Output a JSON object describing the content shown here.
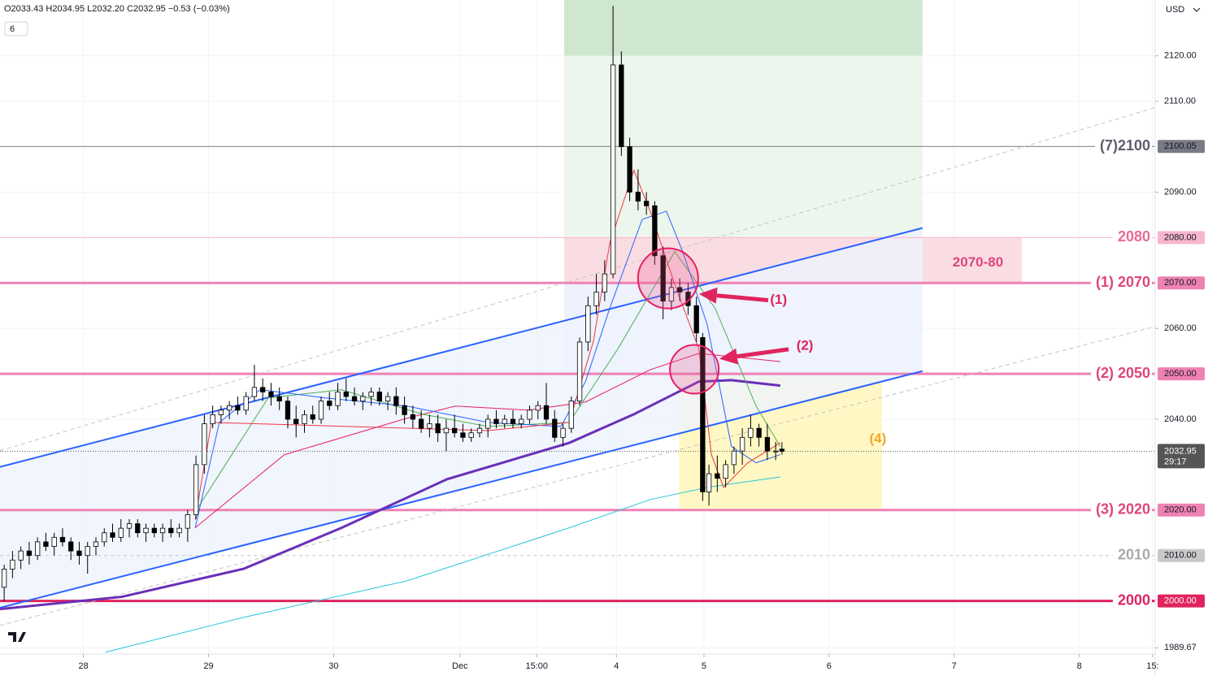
{
  "chart_data": {
    "type": "candlestick",
    "header": "O2033.43 H2034.95 L2032.20 C2032.95 −0.53 (−0.03%)",
    "interval_badge": "6",
    "currency": "USD",
    "xlim": [
      0,
      277
    ],
    "ylim": [
      1988.3,
      2132.3
    ],
    "grid": true,
    "xticks": [
      {
        "value": 20,
        "label": "28"
      },
      {
        "value": 50,
        "label": "29"
      },
      {
        "value": 80,
        "label": "30"
      },
      {
        "value": 110.3,
        "label": "Dec"
      },
      {
        "value": 128.7,
        "label": "15:00"
      },
      {
        "value": 147.8,
        "label": "4"
      },
      {
        "value": 168.8,
        "label": "5"
      },
      {
        "value": 198.8,
        "label": "6"
      },
      {
        "value": 228.8,
        "label": "7"
      },
      {
        "value": 258.8,
        "label": "8"
      },
      {
        "value": 276.4,
        "label": "15:"
      }
    ],
    "yticks": [
      {
        "value": 2120,
        "label": "2120.00"
      },
      {
        "value": 2110,
        "label": "2110.00"
      },
      {
        "value": 2090,
        "label": "2090.00"
      },
      {
        "value": 2060,
        "label": "2060.00"
      },
      {
        "value": 2040,
        "label": "2040.00"
      },
      {
        "value": 1989.67,
        "label": "1989.67"
      }
    ],
    "up_color": "#ffffff",
    "down_color": "#000000",
    "wick_color": "#000000",
    "x": [
      1,
      3,
      5,
      7,
      9,
      11,
      13,
      15,
      17,
      19,
      21,
      23,
      25,
      27,
      29,
      31,
      33,
      35,
      37,
      39,
      41,
      43,
      45,
      47,
      49,
      51,
      53,
      55,
      57,
      59,
      61,
      63,
      65,
      67,
      69,
      71,
      73,
      75,
      77,
      79,
      81,
      83,
      85,
      87,
      89,
      91,
      93,
      95,
      97,
      99,
      101,
      103,
      105,
      107,
      109,
      111,
      113,
      115,
      117,
      119,
      121,
      123,
      125,
      127,
      129,
      131,
      133,
      135,
      137,
      139,
      141,
      143,
      145,
      147,
      149,
      151,
      153,
      155,
      157,
      159,
      161,
      163,
      165,
      167,
      168.5,
      170,
      172,
      174,
      176,
      178,
      180,
      182,
      184,
      186,
      187.5
    ],
    "open": [
      2003,
      2007,
      2009,
      2011,
      2010,
      2013,
      2012,
      2014,
      2013,
      2011,
      2010,
      2012,
      2013,
      2015,
      2014,
      2016,
      2017,
      2015,
      2016,
      2015,
      2016,
      2015,
      2016,
      2019,
      2030,
      2039,
      2041,
      2042,
      2043,
      2042,
      2045,
      2047,
      2046,
      2045,
      2044,
      2040,
      2039,
      2041,
      2040,
      2044,
      2043,
      2046,
      2045,
      2044,
      2045,
      2046,
      2044,
      2045,
      2043,
      2041,
      2040,
      2038,
      2039,
      2037,
      2038,
      2037,
      2036,
      2037,
      2038,
      2040,
      2039,
      2040,
      2039,
      2040,
      2042,
      2043,
      2040,
      2036,
      2038,
      2044,
      2057,
      2065,
      2068,
      2072,
      2118,
      2100,
      2090,
      2088,
      2087,
      2076,
      2066,
      2069,
      2068,
      2065,
      2058,
      2024,
      2028,
      2027,
      2030,
      2033,
      2036,
      2038,
      2036,
      2033,
      2033.43
    ],
    "high": [
      2008,
      2011,
      2012,
      2013,
      2014,
      2015,
      2015,
      2016,
      2014,
      2013,
      2013,
      2014,
      2016,
      2017,
      2018,
      2018,
      2018,
      2017,
      2017,
      2017,
      2018,
      2017,
      2020,
      2032,
      2041,
      2043,
      2043,
      2044,
      2045,
      2046,
      2052,
      2049,
      2048,
      2047,
      2045,
      2043,
      2042,
      2043,
      2045,
      2046,
      2048,
      2049,
      2047,
      2046,
      2047,
      2047,
      2046,
      2047,
      2045,
      2043,
      2042,
      2041,
      2041,
      2040,
      2041,
      2039,
      2038,
      2039,
      2041,
      2042,
      2041,
      2042,
      2041,
      2043,
      2044,
      2048,
      2042,
      2039,
      2045,
      2058,
      2067,
      2072,
      2075,
      2131,
      2121,
      2102,
      2095,
      2090,
      2088,
      2078,
      2071,
      2071,
      2070,
      2067,
      2059,
      2030,
      2032,
      2031,
      2034,
      2038,
      2041,
      2039,
      2039,
      2035,
      2034.95
    ],
    "low": [
      2000,
      2005,
      2007,
      2008,
      2009,
      2011,
      2010,
      2012,
      2009,
      2008,
      2006,
      2010,
      2012,
      2013,
      2013,
      2014,
      2014,
      2013,
      2014,
      2013,
      2014,
      2014,
      2013,
      2018,
      2028,
      2038,
      2039,
      2040,
      2041,
      2041,
      2044,
      2044,
      2043,
      2042,
      2038,
      2036,
      2037,
      2039,
      2039,
      2042,
      2042,
      2044,
      2043,
      2042,
      2043,
      2043,
      2042,
      2041,
      2039,
      2038,
      2037,
      2036,
      2035,
      2033,
      2036,
      2035,
      2035,
      2036,
      2036,
      2038,
      2038,
      2038,
      2038,
      2039,
      2040,
      2039,
      2035,
      2034,
      2037,
      2043,
      2055,
      2063,
      2066,
      2071,
      2098,
      2088,
      2086,
      2085,
      2074,
      2062,
      2064,
      2066,
      2063,
      2057,
      2022,
      2021,
      2024,
      2025,
      2028,
      2030,
      2034,
      2034,
      2031,
      2031,
      2032.2
    ],
    "close": [
      2007,
      2009,
      2011,
      2010,
      2013,
      2012,
      2014,
      2013,
      2011,
      2010,
      2012,
      2013,
      2015,
      2014,
      2016,
      2017,
      2015,
      2016,
      2015,
      2016,
      2015,
      2016,
      2019,
      2030,
      2039,
      2041,
      2042,
      2043,
      2042,
      2045,
      2047,
      2046,
      2045,
      2044,
      2040,
      2039,
      2041,
      2040,
      2044,
      2043,
      2046,
      2045,
      2044,
      2045,
      2046,
      2044,
      2045,
      2043,
      2041,
      2040,
      2038,
      2039,
      2037,
      2038,
      2037,
      2036,
      2037,
      2038,
      2040,
      2039,
      2040,
      2039,
      2040,
      2042,
      2043,
      2040,
      2036,
      2038,
      2044,
      2057,
      2065,
      2068,
      2072,
      2118,
      2100,
      2090,
      2088,
      2087,
      2076,
      2066,
      2069,
      2068,
      2065,
      2059,
      2024,
      2028,
      2027,
      2030,
      2033,
      2036,
      2038,
      2036,
      2033,
      2033,
      2032.95
    ],
    "zones": [
      {
        "x": [
          135.3,
          221.2
        ],
        "y": [
          2120,
          2132.3
        ],
        "color": "#cfe6cf"
      },
      {
        "x": [
          135.3,
          221.2
        ],
        "y": [
          2080.1,
          2120
        ],
        "color": "#edf6ec"
      },
      {
        "x": [
          135.3,
          245
        ],
        "y": [
          2070.1,
          2080.1
        ],
        "color": "#f9dde3"
      },
      {
        "x": [
          135.3,
          221.2
        ],
        "y": [
          2050,
          2070.1
        ],
        "color": "#eef2fc"
      },
      {
        "x": [
          162.8,
          211.5
        ],
        "y": [
          2020,
          2050
        ],
        "color": "#fff8c4"
      }
    ],
    "channel_fill": "#eef2fc",
    "trendlines": [
      {
        "x": [
          0,
          221.2
        ],
        "y": [
          2029.5,
          2082.1
        ],
        "color": "#2962ff",
        "dashed": false
      },
      {
        "x": [
          0,
          221.2
        ],
        "y": [
          1998.5,
          2050.6
        ],
        "color": "#2962ff",
        "dashed": false
      },
      {
        "x": [
          0,
          277
        ],
        "y": [
          2033.1,
          2108.6
        ],
        "color": "#c4c4c4",
        "dashed": true
      },
      {
        "x": [
          0,
          277
        ],
        "y": [
          1994.6,
          2060.4
        ],
        "color": "#c4c4c4",
        "dashed": true
      }
    ],
    "lines": [
      {
        "color": "#26c6da",
        "width": 1,
        "x": [
          25.3,
          58.5,
          97.5,
          136.5,
          155.9,
          169.6,
          187.1
        ],
        "y": [
          1988.7,
          1996.4,
          2004.4,
          2016.1,
          2022.3,
          2025,
          2027.3
        ]
      },
      {
        "color": "#6a2fb8",
        "width": 3,
        "x": [
          0,
          29.2,
          58.5,
          81.9,
          107.2,
          136.5,
          152,
          167.6,
          175.4,
          187.1
        ],
        "y": [
          1998.2,
          2000.9,
          2007.1,
          2016.1,
          2026.8,
          2034.8,
          2041.1,
          2048.3,
          2048.6,
          2047.4
        ]
      },
      {
        "color": "#e91e63",
        "width": 1,
        "x": [
          46.8,
          68.2,
          97.5,
          109.2,
          126.7,
          140.4,
          155.9,
          167.6,
          187.1
        ],
        "y": [
          2016.1,
          2032.2,
          2040.2,
          2042.9,
          2042,
          2043.8,
          2050.9,
          2054.5,
          2052.7
        ]
      },
      {
        "color": "#4caf50",
        "width": 1,
        "x": [
          46.8,
          64.3,
          81.9,
          101.4,
          117,
          136.5,
          148.1,
          161.8,
          171.5,
          181.3,
          187.1
        ],
        "y": [
          2019.6,
          2044.7,
          2046.5,
          2041.1,
          2038.4,
          2039.3,
          2055.4,
          2076.9,
          2064.4,
          2042.9,
          2034
        ]
      },
      {
        "color": "#2962ff",
        "width": 1,
        "x": [
          46.8,
          52.6,
          62.4,
          78,
          97.5,
          117,
          134.5,
          140.4,
          146.2,
          154,
          159.8,
          163.7,
          169.6,
          175.4,
          181.3,
          187.1
        ],
        "y": [
          2016.1,
          2039.3,
          2046.5,
          2044.7,
          2042.9,
          2039.3,
          2038.4,
          2048.3,
          2064.4,
          2084,
          2085.8,
          2076.9,
          2060.8,
          2034,
          2030.4,
          2032.2
        ]
      },
      {
        "color": "#f23645",
        "width": 1,
        "x": [
          46.8,
          50.7,
          117,
          136.5,
          142.3,
          146.2,
          152,
          155.9,
          161.8,
          167.6,
          170.6,
          173.5,
          179.3,
          187.1
        ],
        "y": [
          2017.9,
          2039.3,
          2037.5,
          2039.3,
          2057.2,
          2078.7,
          2094.8,
          2085.8,
          2069.7,
          2055.4,
          2032.2,
          2025,
          2030.4,
          2034.8
        ]
      }
    ],
    "levels": [
      {
        "value": 2100.05,
        "label": "(7)2100",
        "tag": "2100.05",
        "color": "#787b86",
        "text_color": "#5d606b",
        "width": 1,
        "dashed": false
      },
      {
        "value": 2080,
        "label": "2080",
        "tag": "2080.00",
        "color": "#f7b6cd",
        "text_color": "#e86a98",
        "width": 1,
        "dashed": false
      },
      {
        "value": 2070,
        "label": "(1) 2070",
        "tag": "2070.00",
        "color": "#ee82b4",
        "text_color": "#e0457b",
        "width": 3,
        "dashed": false
      },
      {
        "value": 2050,
        "label": "(2) 2050",
        "tag": "2050.00",
        "color": "#ee82b4",
        "text_color": "#e0457b",
        "width": 3,
        "dashed": false
      },
      {
        "value": 2020,
        "label": "(3) 2020",
        "tag": "2020.00",
        "color": "#ee82b4",
        "text_color": "#e0457b",
        "width": 3,
        "dashed": false
      },
      {
        "value": 2010,
        "label": "2010",
        "tag": "2010.00",
        "color": "#c8c8c8",
        "text_color": "#aaaaaa",
        "width": 1,
        "dashed": true
      },
      {
        "value": 2000,
        "label": "2000",
        "tag": "2000.00",
        "color": "#e0245e",
        "text_color": "#e0245e",
        "width": 3,
        "dashed": false
      }
    ],
    "last_price": {
      "value": 2032.95,
      "tag": "2032.95",
      "countdown": "29:17",
      "color": "#555555"
    },
    "circles": [
      {
        "x": 160.2,
        "y": 2071
      },
      {
        "x": 166.5,
        "y": 2051
      }
    ],
    "annotations": [
      {
        "text": "2070-80",
        "x": 234.5,
        "y": 2074.4,
        "color": "#e0457b"
      },
      {
        "text": "(4)",
        "x": 210.5,
        "y": 2035.6,
        "color": "#f5a623"
      },
      {
        "text": "(1)",
        "x": 186.7,
        "y": 2066.2,
        "color": "#e0245e",
        "arrow_from": [
          184.2,
          2066.2
        ],
        "arrow_to": [
          167.6,
          2067.6
        ]
      },
      {
        "text": "(2)",
        "x": 193,
        "y": 2056.1,
        "color": "#e0245e",
        "arrow_from": [
          189.1,
          2055.4
        ],
        "arrow_to": [
          172.5,
          2053.3
        ]
      }
    ]
  }
}
